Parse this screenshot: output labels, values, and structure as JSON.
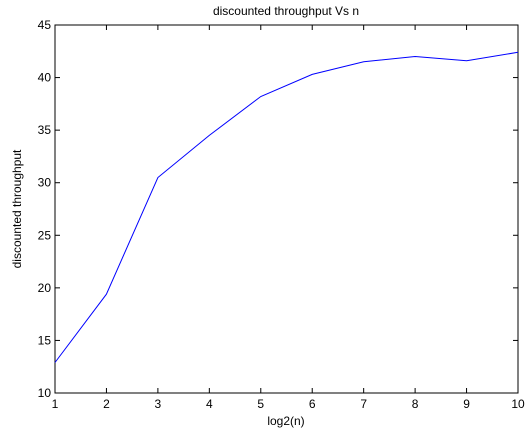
{
  "chart_data": {
    "type": "line",
    "title": "discounted throughput Vs n",
    "xlabel": "log2(n)",
    "ylabel": "discounted throughput",
    "xlim": [
      1,
      10
    ],
    "ylim": [
      10,
      45
    ],
    "x_ticks": [
      1,
      2,
      3,
      4,
      5,
      6,
      7,
      8,
      9,
      10
    ],
    "y_ticks": [
      10,
      15,
      20,
      25,
      30,
      35,
      40,
      45
    ],
    "grid": false,
    "series": [
      {
        "color": "#0000ff",
        "x": [
          1,
          2,
          3,
          4,
          5,
          6,
          7,
          8,
          9,
          10
        ],
        "y": [
          12.9,
          19.4,
          30.5,
          34.5,
          38.2,
          40.3,
          41.5,
          42.0,
          41.6,
          42.4
        ]
      }
    ]
  }
}
